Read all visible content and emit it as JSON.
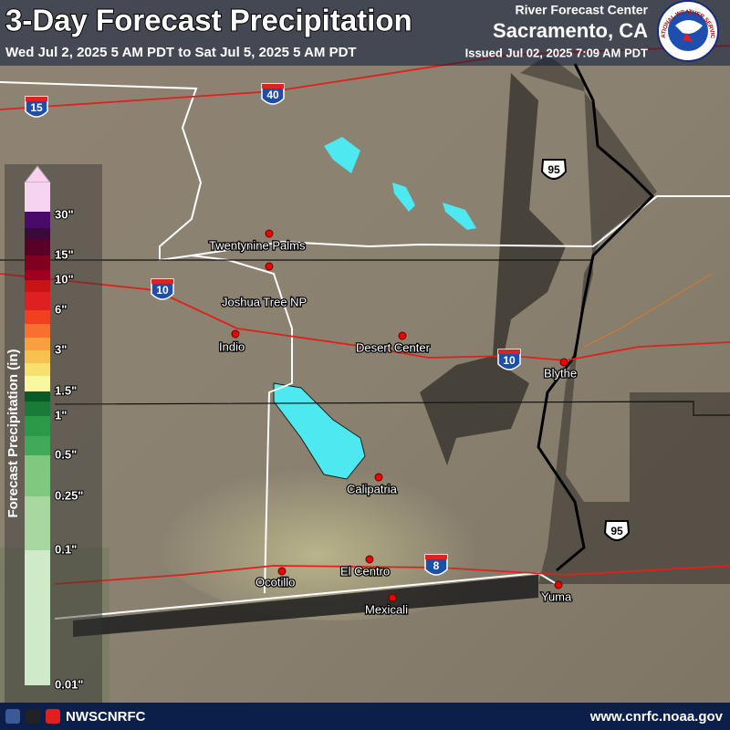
{
  "header": {
    "title": "3-Day Forecast Precipitation",
    "period": "Wed Jul 2, 2025 5 AM PDT to Sat Jul 5, 2025 5 AM PDT",
    "office_line": "River Forecast Center",
    "office_name": "Sacramento, CA",
    "issued": "Issued Jul 02, 2025 7:09 AM PDT",
    "logo_text": "NATIONAL WEATHER SERVICE"
  },
  "legend": {
    "title": "Forecast Precipitation (in)",
    "labels": [
      "30\"",
      "15\"",
      "10\"",
      "6\"",
      "3\"",
      "1.5\"",
      "1\"",
      "0.5\"",
      "0.25\"",
      "0.1\"",
      "0.01\""
    ]
  },
  "places": [
    "Twentynine Palms",
    "Joshua Tree NP",
    "Indio",
    "Desert Center",
    "Blythe",
    "Calipatria",
    "El Centro",
    "Ocotillo",
    "Mexicali",
    "Yuma"
  ],
  "highways": [
    "15",
    "40",
    "10",
    "10",
    "95",
    "95",
    "8"
  ],
  "footer": {
    "handle": "NWSCNRFC",
    "url": "www.cnrfc.noaa.gov"
  }
}
